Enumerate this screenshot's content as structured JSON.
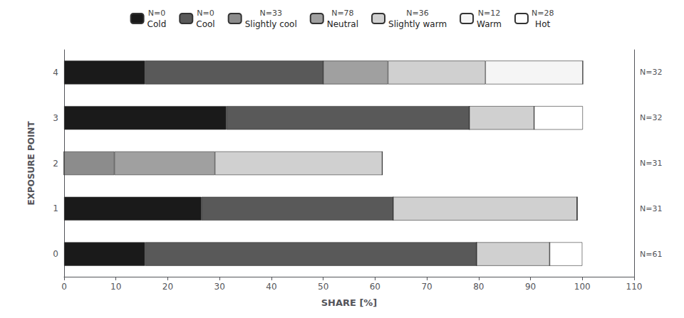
{
  "chart_data": {
    "type": "bar",
    "orientation": "horizontal",
    "stacked": true,
    "categories": [
      "0",
      "1",
      "2",
      "3",
      "4"
    ],
    "annotations": [
      "N=61",
      "N=31",
      "N=31",
      "N=32",
      "N=32"
    ],
    "series": [
      {
        "name": "Cold",
        "color": "#1a1a1a",
        "annotation": "N=0",
        "values": [
          15.6,
          26.5,
          0.0,
          31.3,
          15.6
        ]
      },
      {
        "name": "Cool",
        "color": "#595959",
        "annotation": "N=0",
        "values": [
          64.0,
          37.0,
          0.0,
          46.9,
          34.4
        ]
      },
      {
        "name": "Slightly cool",
        "color": "#8c8c8c",
        "annotation": "N=33",
        "values": [
          0.0,
          0.0,
          9.7,
          0.0,
          0.0
        ]
      },
      {
        "name": "Neutral",
        "color": "#a0a0a0",
        "annotation": "N=78",
        "values": [
          0.0,
          0.0,
          19.4,
          0.0,
          12.5
        ]
      },
      {
        "name": "Slightly warm",
        "color": "#d0d0d0",
        "annotation": "N=36",
        "values": [
          14.1,
          35.5,
          32.3,
          12.5,
          18.8
        ]
      },
      {
        "name": "Warm",
        "color": "#f5f5f5",
        "annotation": "N=12",
        "values": [
          0.0,
          0.0,
          0.0,
          0.0,
          18.8
        ]
      },
      {
        "name": "Hot",
        "color": "#ffffff",
        "annotation": "N=28",
        "values": [
          6.3,
          0.0,
          0.0,
          9.4,
          0.0
        ]
      }
    ],
    "xlabel": "SHARE [%]",
    "ylabel": "EXPOSURE POINT",
    "xlim": [
      0,
      110
    ],
    "xticks": [
      0,
      10,
      20,
      30,
      40,
      50,
      60,
      70,
      80,
      90,
      100,
      110
    ],
    "grid": false,
    "legend": "top"
  }
}
